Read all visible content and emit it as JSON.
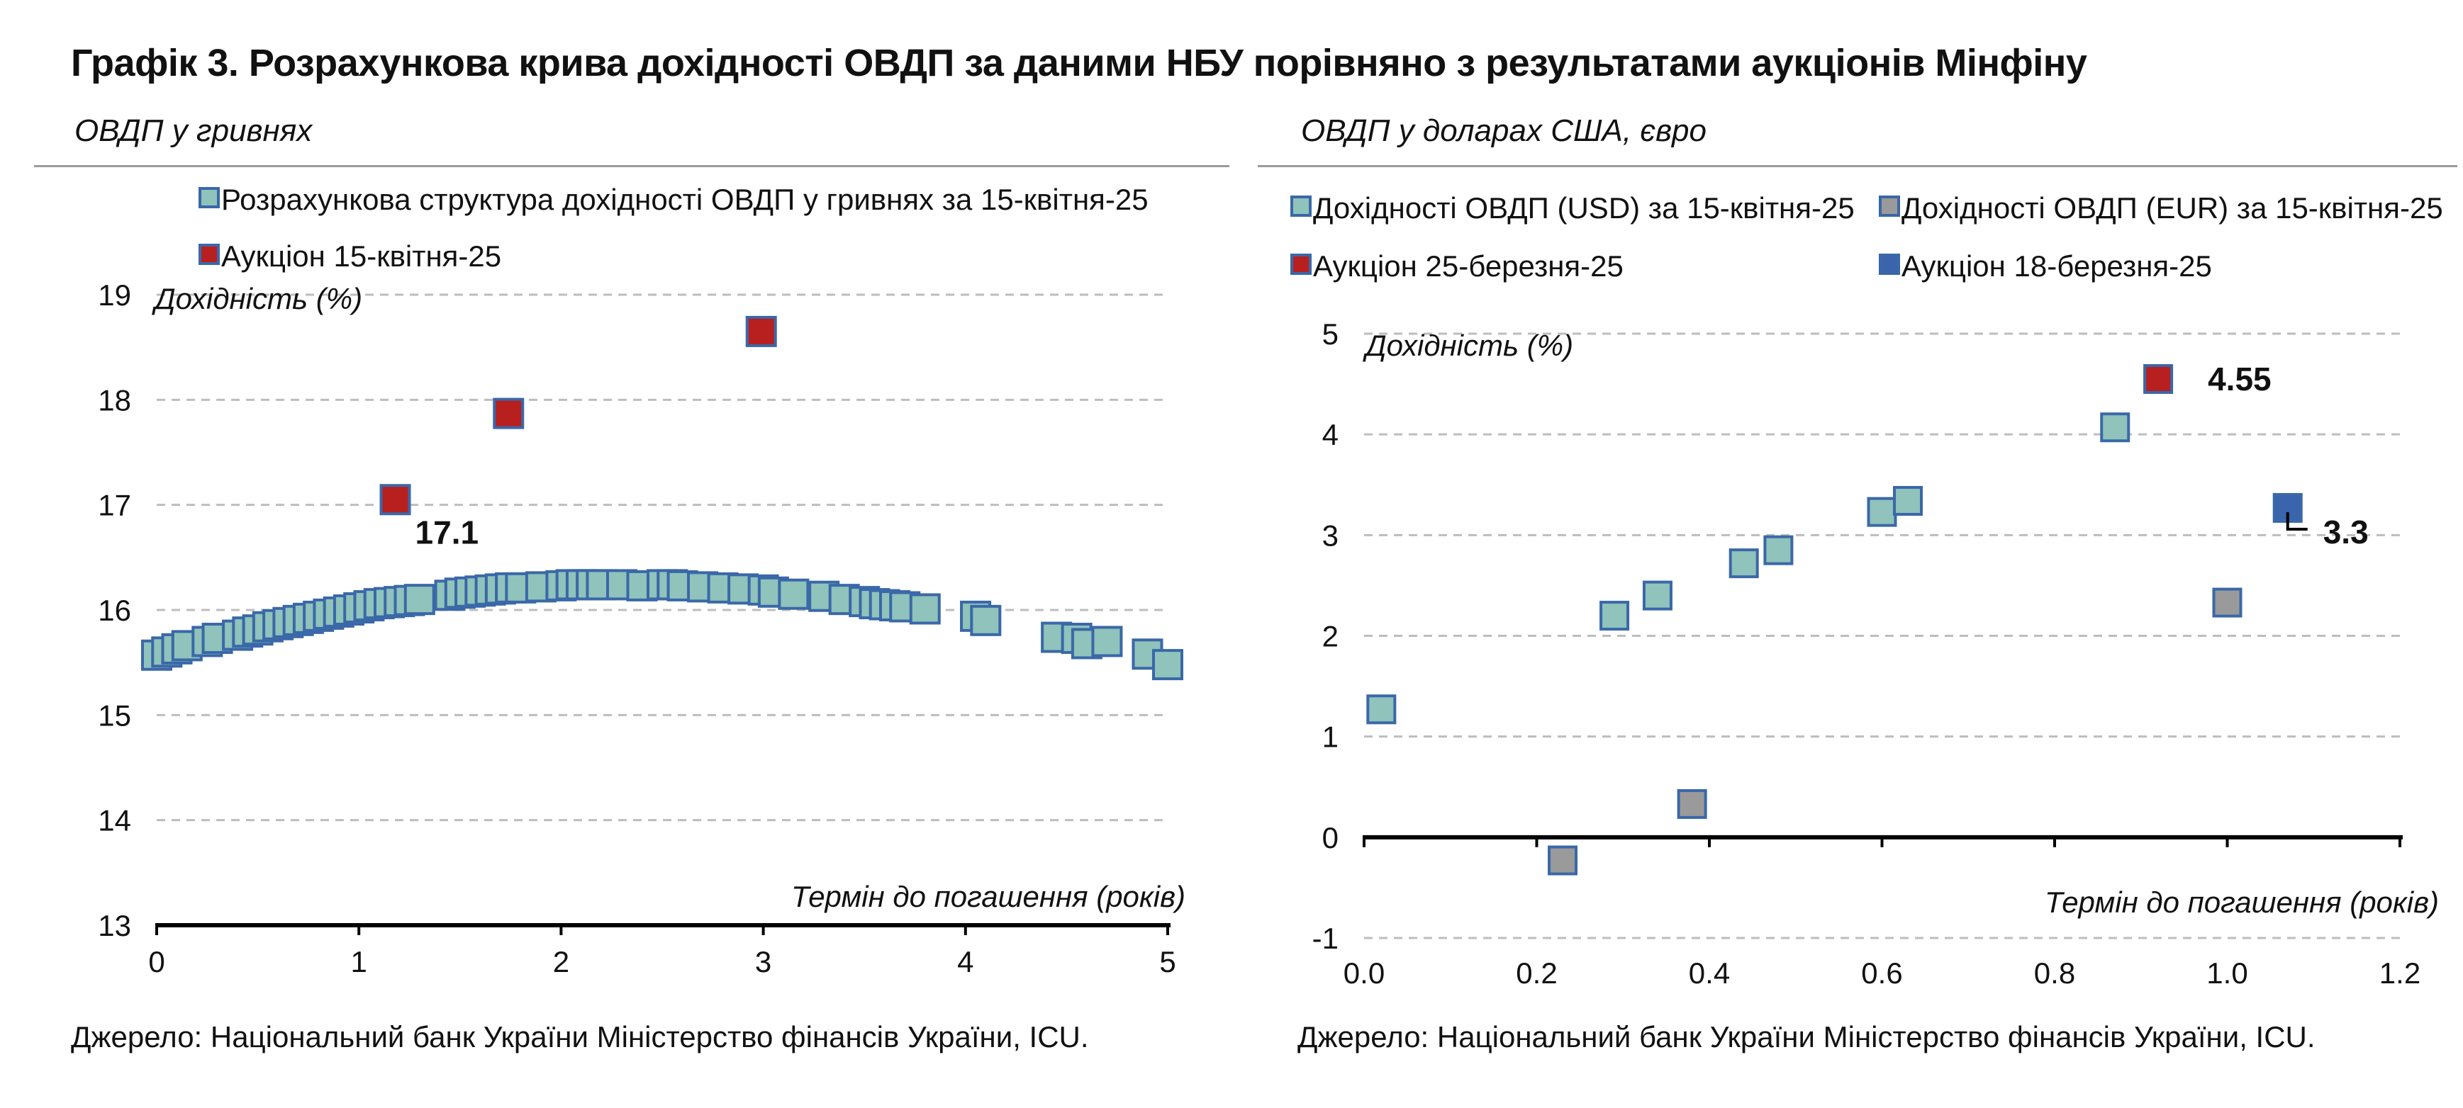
{
  "title": "Графік 3. Розрахункова крива дохідності ОВДП за даними НБУ порівняно з результатами аукціонів Мінфіну",
  "colors": {
    "curve": "#8fc3bb",
    "curve_border": "#3a68a8",
    "auction_red": "#b81f1f",
    "auction_blue": "#3a65ad",
    "eur": "#9a9a9a",
    "grid": "#bdbdbd"
  },
  "source_left": "Джерело: Національний банк України Міністерство фінансів України, ICU.",
  "source_right": "Джерело: Національний банк України Міністерство фінансів України, ICU.",
  "chart_data": [
    {
      "type": "scatter",
      "subtitle": "ОВДП у гривнях",
      "ylabel": "Дохідність (%)",
      "xlabel": "Термін до погашення (років)",
      "xlim": [
        0,
        5
      ],
      "ylim": [
        13,
        19
      ],
      "xticks": [
        "0",
        "1",
        "2",
        "3",
        "4",
        "5"
      ],
      "yticks": [
        "13",
        "14",
        "15",
        "16",
        "17",
        "18",
        "19"
      ],
      "grid": "horizontal dashed",
      "legend_position": "top",
      "series": [
        {
          "name": "Розрахункова структура дохідності ОВДП у гривнях за 15-квітня-25",
          "marker": "curve",
          "x": [
            0.0,
            0.05,
            0.1,
            0.15,
            0.25,
            0.3,
            0.4,
            0.45,
            0.5,
            0.55,
            0.6,
            0.65,
            0.7,
            0.75,
            0.8,
            0.85,
            0.9,
            0.95,
            1.0,
            1.05,
            1.1,
            1.15,
            1.2,
            1.25,
            1.3,
            1.45,
            1.5,
            1.55,
            1.6,
            1.65,
            1.7,
            1.75,
            1.8,
            1.9,
            2.0,
            2.05,
            2.1,
            2.15,
            2.2,
            2.3,
            2.4,
            2.5,
            2.55,
            2.6,
            2.7,
            2.8,
            2.9,
            3.0,
            3.05,
            3.15,
            3.3,
            3.4,
            3.5,
            3.55,
            3.6,
            3.65,
            3.7,
            3.8,
            4.05,
            4.1,
            4.45,
            4.55,
            4.6,
            4.7,
            4.9,
            5.0
          ],
          "y": [
            15.57,
            15.6,
            15.63,
            15.66,
            15.7,
            15.73,
            15.76,
            15.79,
            15.81,
            15.84,
            15.86,
            15.88,
            15.9,
            15.92,
            15.94,
            15.96,
            15.98,
            16.0,
            16.02,
            16.04,
            16.06,
            16.07,
            16.08,
            16.09,
            16.1,
            16.14,
            16.16,
            16.17,
            16.18,
            16.19,
            16.2,
            16.21,
            16.21,
            16.22,
            16.23,
            16.24,
            16.24,
            16.24,
            16.24,
            16.24,
            16.23,
            16.24,
            16.24,
            16.23,
            16.22,
            16.21,
            16.2,
            16.19,
            16.17,
            16.15,
            16.13,
            16.1,
            16.08,
            16.06,
            16.05,
            16.04,
            16.03,
            16.01,
            15.94,
            15.9,
            15.74,
            15.73,
            15.68,
            15.7,
            15.58,
            15.48
          ]
        },
        {
          "name": "Аукціон 15-квітня-25",
          "marker": "red",
          "x": [
            1.18,
            1.74,
            2.99
          ],
          "y": [
            17.05,
            17.87,
            18.65
          ],
          "labels": [
            "17.1",
            "",
            ""
          ]
        }
      ]
    },
    {
      "type": "scatter",
      "subtitle": "ОВДП у доларах США, євро",
      "ylabel": "Дохідність (%)",
      "xlabel": "Термін до погашення (років)",
      "xlim": [
        0.0,
        1.2
      ],
      "ylim": [
        -1,
        5
      ],
      "xticks": [
        "0.0",
        "0.2",
        "0.4",
        "0.6",
        "0.8",
        "1.0",
        "1.2"
      ],
      "yticks": [
        "-1",
        "0",
        "1",
        "2",
        "3",
        "4",
        "5"
      ],
      "grid": "horizontal dashed",
      "legend_position": "top",
      "series": [
        {
          "name": "Дохідності ОВДП (USD) за 15-квітня-25",
          "marker": "curve",
          "x": [
            0.02,
            0.29,
            0.34,
            0.44,
            0.48,
            0.6,
            0.63,
            0.87
          ],
          "y": [
            1.27,
            2.2,
            2.4,
            2.72,
            2.85,
            3.23,
            3.34,
            4.07
          ],
          "labels": [
            "",
            "",
            "",
            "",
            "",
            "",
            "",
            ""
          ]
        },
        {
          "name": "Дохідності ОВДП (EUR) за 15-квітня-25",
          "marker": "eur",
          "x": [
            0.23,
            0.38,
            1.0
          ],
          "y": [
            -0.23,
            0.33,
            2.33
          ],
          "labels": [
            "",
            "",
            ""
          ]
        },
        {
          "name": "Аукціон 25-березня-25",
          "marker": "red",
          "x": [
            0.92
          ],
          "y": [
            4.55
          ],
          "labels": [
            "4.55"
          ]
        },
        {
          "name": "Аукціон 18-березня-25",
          "marker": "blue",
          "x": [
            1.07
          ],
          "y": [
            3.27
          ],
          "labels": [
            "3.3"
          ]
        }
      ]
    }
  ]
}
